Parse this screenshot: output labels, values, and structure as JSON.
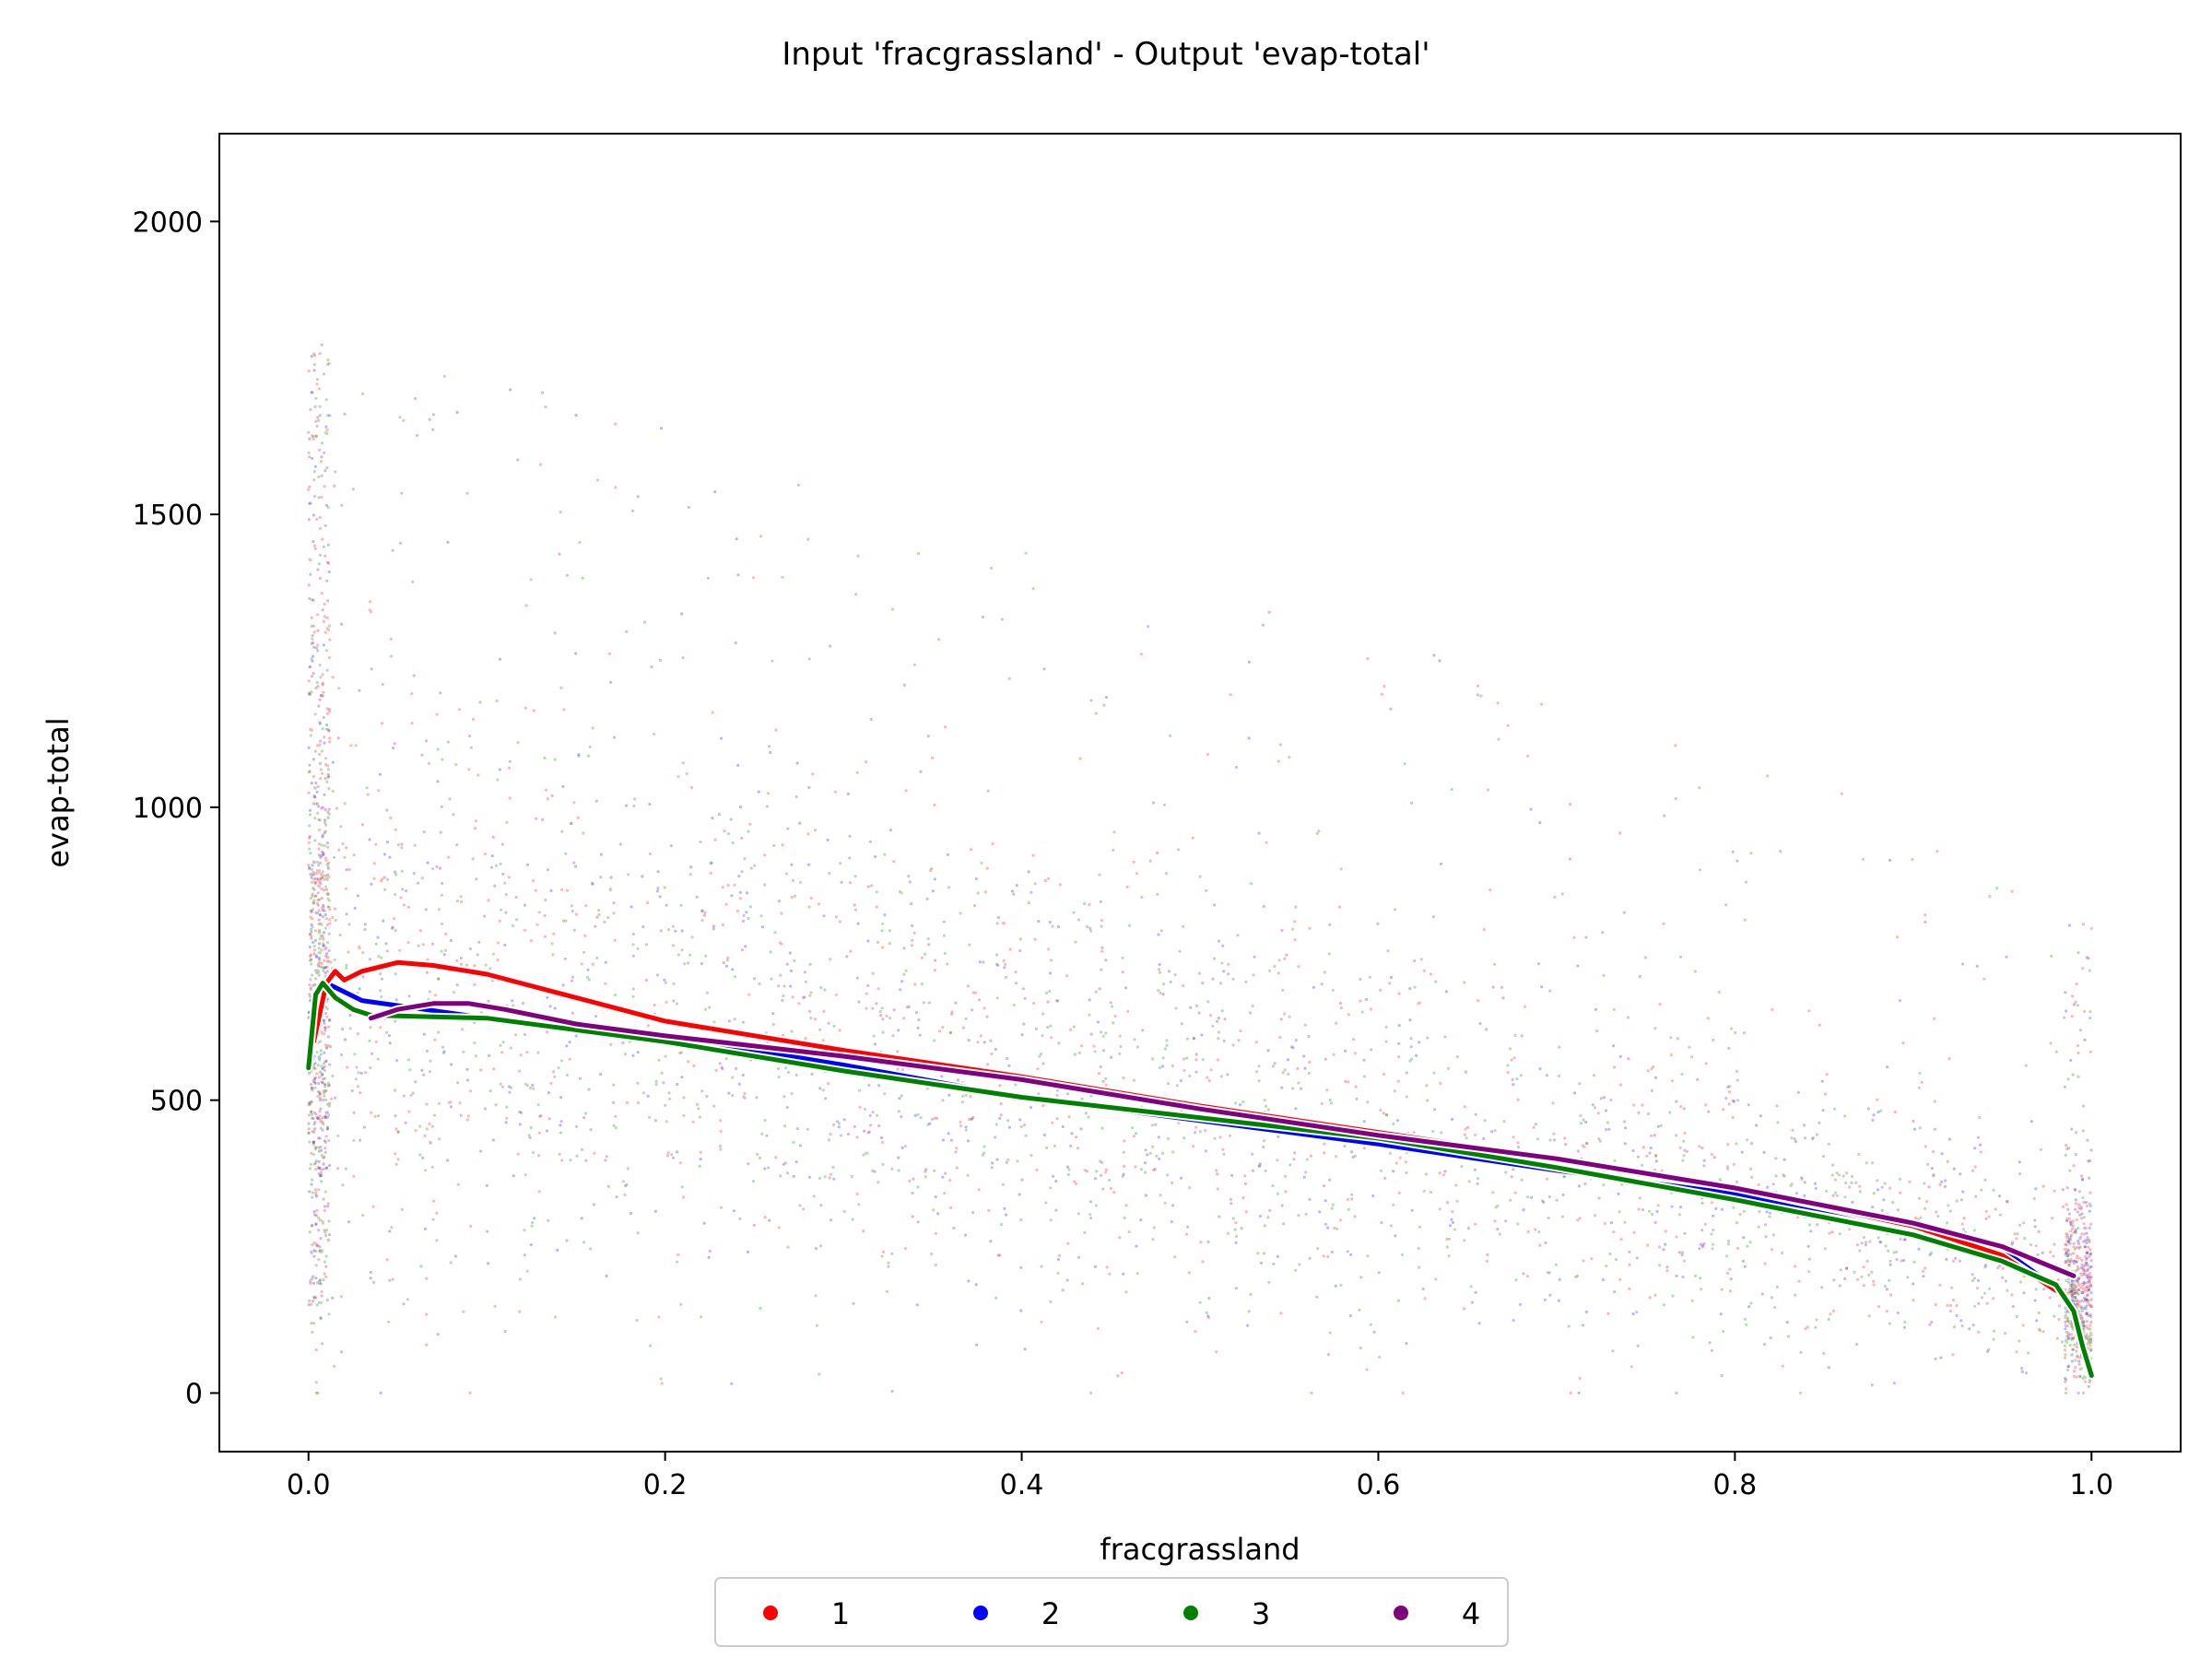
{
  "chart_data": {
    "type": "scatter",
    "title": "Input 'fracgrassland' - Output 'evap-total'",
    "xlabel": "fracgrassland",
    "ylabel": "evap-total",
    "xlim": [
      -0.05,
      1.05
    ],
    "ylim": [
      -100,
      2150
    ],
    "xticks": [
      {
        "value": 0.0,
        "label": "0.0"
      },
      {
        "value": 0.2,
        "label": "0.2"
      },
      {
        "value": 0.4,
        "label": "0.4"
      },
      {
        "value": 0.6,
        "label": "0.6"
      },
      {
        "value": 0.8,
        "label": "0.8"
      },
      {
        "value": 1.0,
        "label": "1.0"
      }
    ],
    "yticks": [
      {
        "value": 0,
        "label": "0"
      },
      {
        "value": 500,
        "label": "500"
      },
      {
        "value": 1000,
        "label": "1000"
      },
      {
        "value": 1500,
        "label": "1500"
      },
      {
        "value": 2000,
        "label": "2000"
      }
    ],
    "grid": false,
    "legend_position": "bottom-center",
    "series": [
      {
        "name": "1",
        "color": "#ff0000",
        "trend_x": [
          0.003,
          0.01,
          0.015,
          0.02,
          0.03,
          0.05,
          0.07,
          0.1,
          0.15,
          0.2,
          0.3,
          0.4,
          0.5,
          0.6,
          0.7,
          0.8,
          0.9,
          0.95,
          0.98
        ],
        "trend_y": [
          600,
          700,
          720,
          705,
          720,
          735,
          730,
          715,
          675,
          635,
          585,
          540,
          490,
          445,
          400,
          350,
          285,
          235,
          175
        ]
      },
      {
        "name": "2",
        "color": "#0000ff",
        "trend_x": [
          0.0,
          0.005,
          0.01,
          0.03,
          0.1,
          0.2,
          0.3,
          0.4,
          0.5,
          0.6,
          0.7,
          0.8,
          0.9,
          0.95,
          0.98
        ],
        "trend_y": [
          560,
          660,
          700,
          670,
          640,
          610,
          560,
          505,
          465,
          425,
          380,
          340,
          285,
          245,
          180
        ]
      },
      {
        "name": "3",
        "color": "#008000",
        "trend_x": [
          0.0,
          0.004,
          0.008,
          0.015,
          0.025,
          0.035,
          0.1,
          0.2,
          0.3,
          0.4,
          0.5,
          0.6,
          0.7,
          0.8,
          0.9,
          0.95,
          0.98,
          0.99,
          0.995,
          1.0
        ],
        "trend_y": [
          555,
          680,
          700,
          675,
          655,
          645,
          640,
          600,
          550,
          505,
          470,
          435,
          385,
          330,
          270,
          225,
          185,
          140,
          80,
          30
        ]
      },
      {
        "name": "4",
        "color": "#800080",
        "trend_x": [
          0.035,
          0.05,
          0.07,
          0.09,
          0.11,
          0.15,
          0.2,
          0.3,
          0.4,
          0.5,
          0.6,
          0.7,
          0.8,
          0.9,
          0.95,
          0.99
        ],
        "trend_y": [
          640,
          655,
          665,
          665,
          655,
          630,
          610,
          575,
          535,
          485,
          440,
          400,
          350,
          290,
          250,
          200
        ]
      }
    ]
  }
}
